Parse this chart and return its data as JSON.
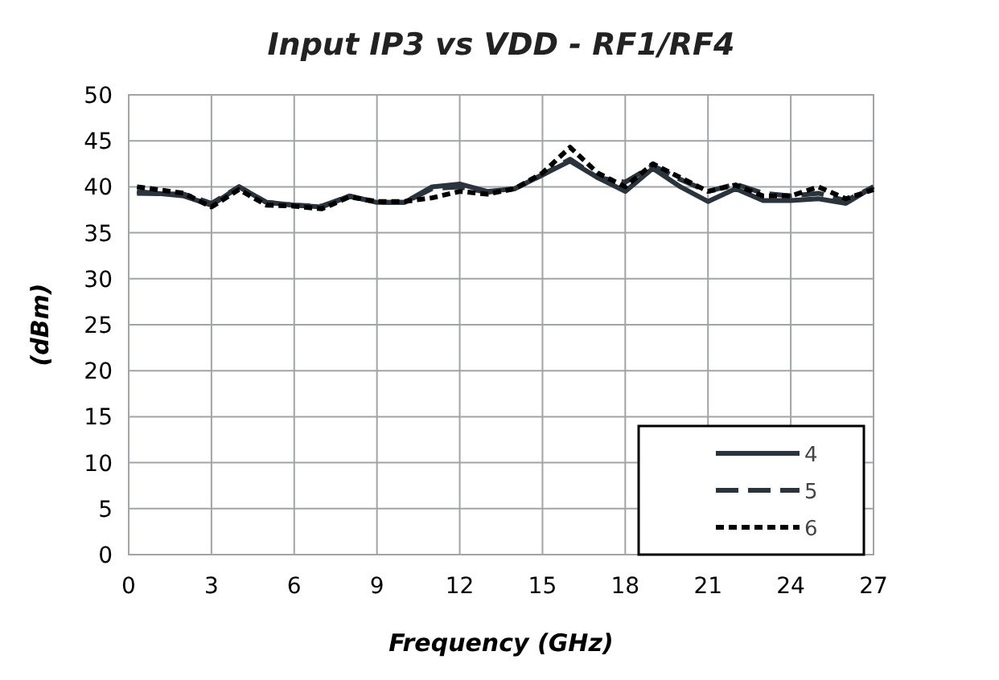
{
  "chart_data": {
    "type": "line",
    "title": "Input IP3 vs VDD - RF1/RF4",
    "xlabel": "Frequency (GHz)",
    "ylabel": "(dBm)",
    "x": [
      0.3,
      2,
      3,
      4,
      5,
      6,
      7,
      8,
      9,
      10,
      11,
      12,
      13,
      14,
      15,
      16,
      17,
      18,
      19,
      20,
      21,
      22,
      23,
      24,
      25,
      26,
      27
    ],
    "series": [
      {
        "name": "4",
        "color": "#2b333d",
        "line_style": "solid",
        "values": [
          39.5,
          39,
          38,
          40,
          38.3,
          38,
          37.8,
          39,
          38.3,
          38.3,
          40,
          40.3,
          39.5,
          39.8,
          41.3,
          42.8,
          41,
          39.5,
          42,
          40,
          38.4,
          39.8,
          38.5,
          38.5,
          38.7,
          38.2,
          40
        ]
      },
      {
        "name": "5",
        "color": "#2b333d",
        "line_style": "dashed",
        "values": [
          39.3,
          39.2,
          38.2,
          40,
          38.3,
          38,
          37.9,
          39,
          38.3,
          38.3,
          39.8,
          40,
          39.4,
          39.8,
          41.3,
          43,
          41,
          40.5,
          42.3,
          40.8,
          39.5,
          40.3,
          39.3,
          39,
          39.3,
          38.5,
          40
        ]
      },
      {
        "name": "6",
        "color": "#000000",
        "line_style": "dotted",
        "values": [
          40,
          39.3,
          37.8,
          39.7,
          38,
          37.9,
          37.6,
          38.9,
          38.4,
          38.4,
          38.8,
          39.5,
          39.2,
          39.8,
          41.5,
          44.3,
          41.5,
          40,
          42.5,
          41,
          39.5,
          40.2,
          39,
          39,
          40,
          38.7,
          39.7
        ]
      }
    ],
    "xlim": [
      0,
      27
    ],
    "xticks": [
      0,
      3,
      6,
      9,
      12,
      15,
      18,
      21,
      24,
      27
    ],
    "ylim": [
      0,
      50
    ],
    "yticks": [
      0,
      5,
      10,
      15,
      20,
      25,
      30,
      35,
      40,
      45,
      50
    ],
    "grid": true,
    "legend": "bottom right"
  }
}
